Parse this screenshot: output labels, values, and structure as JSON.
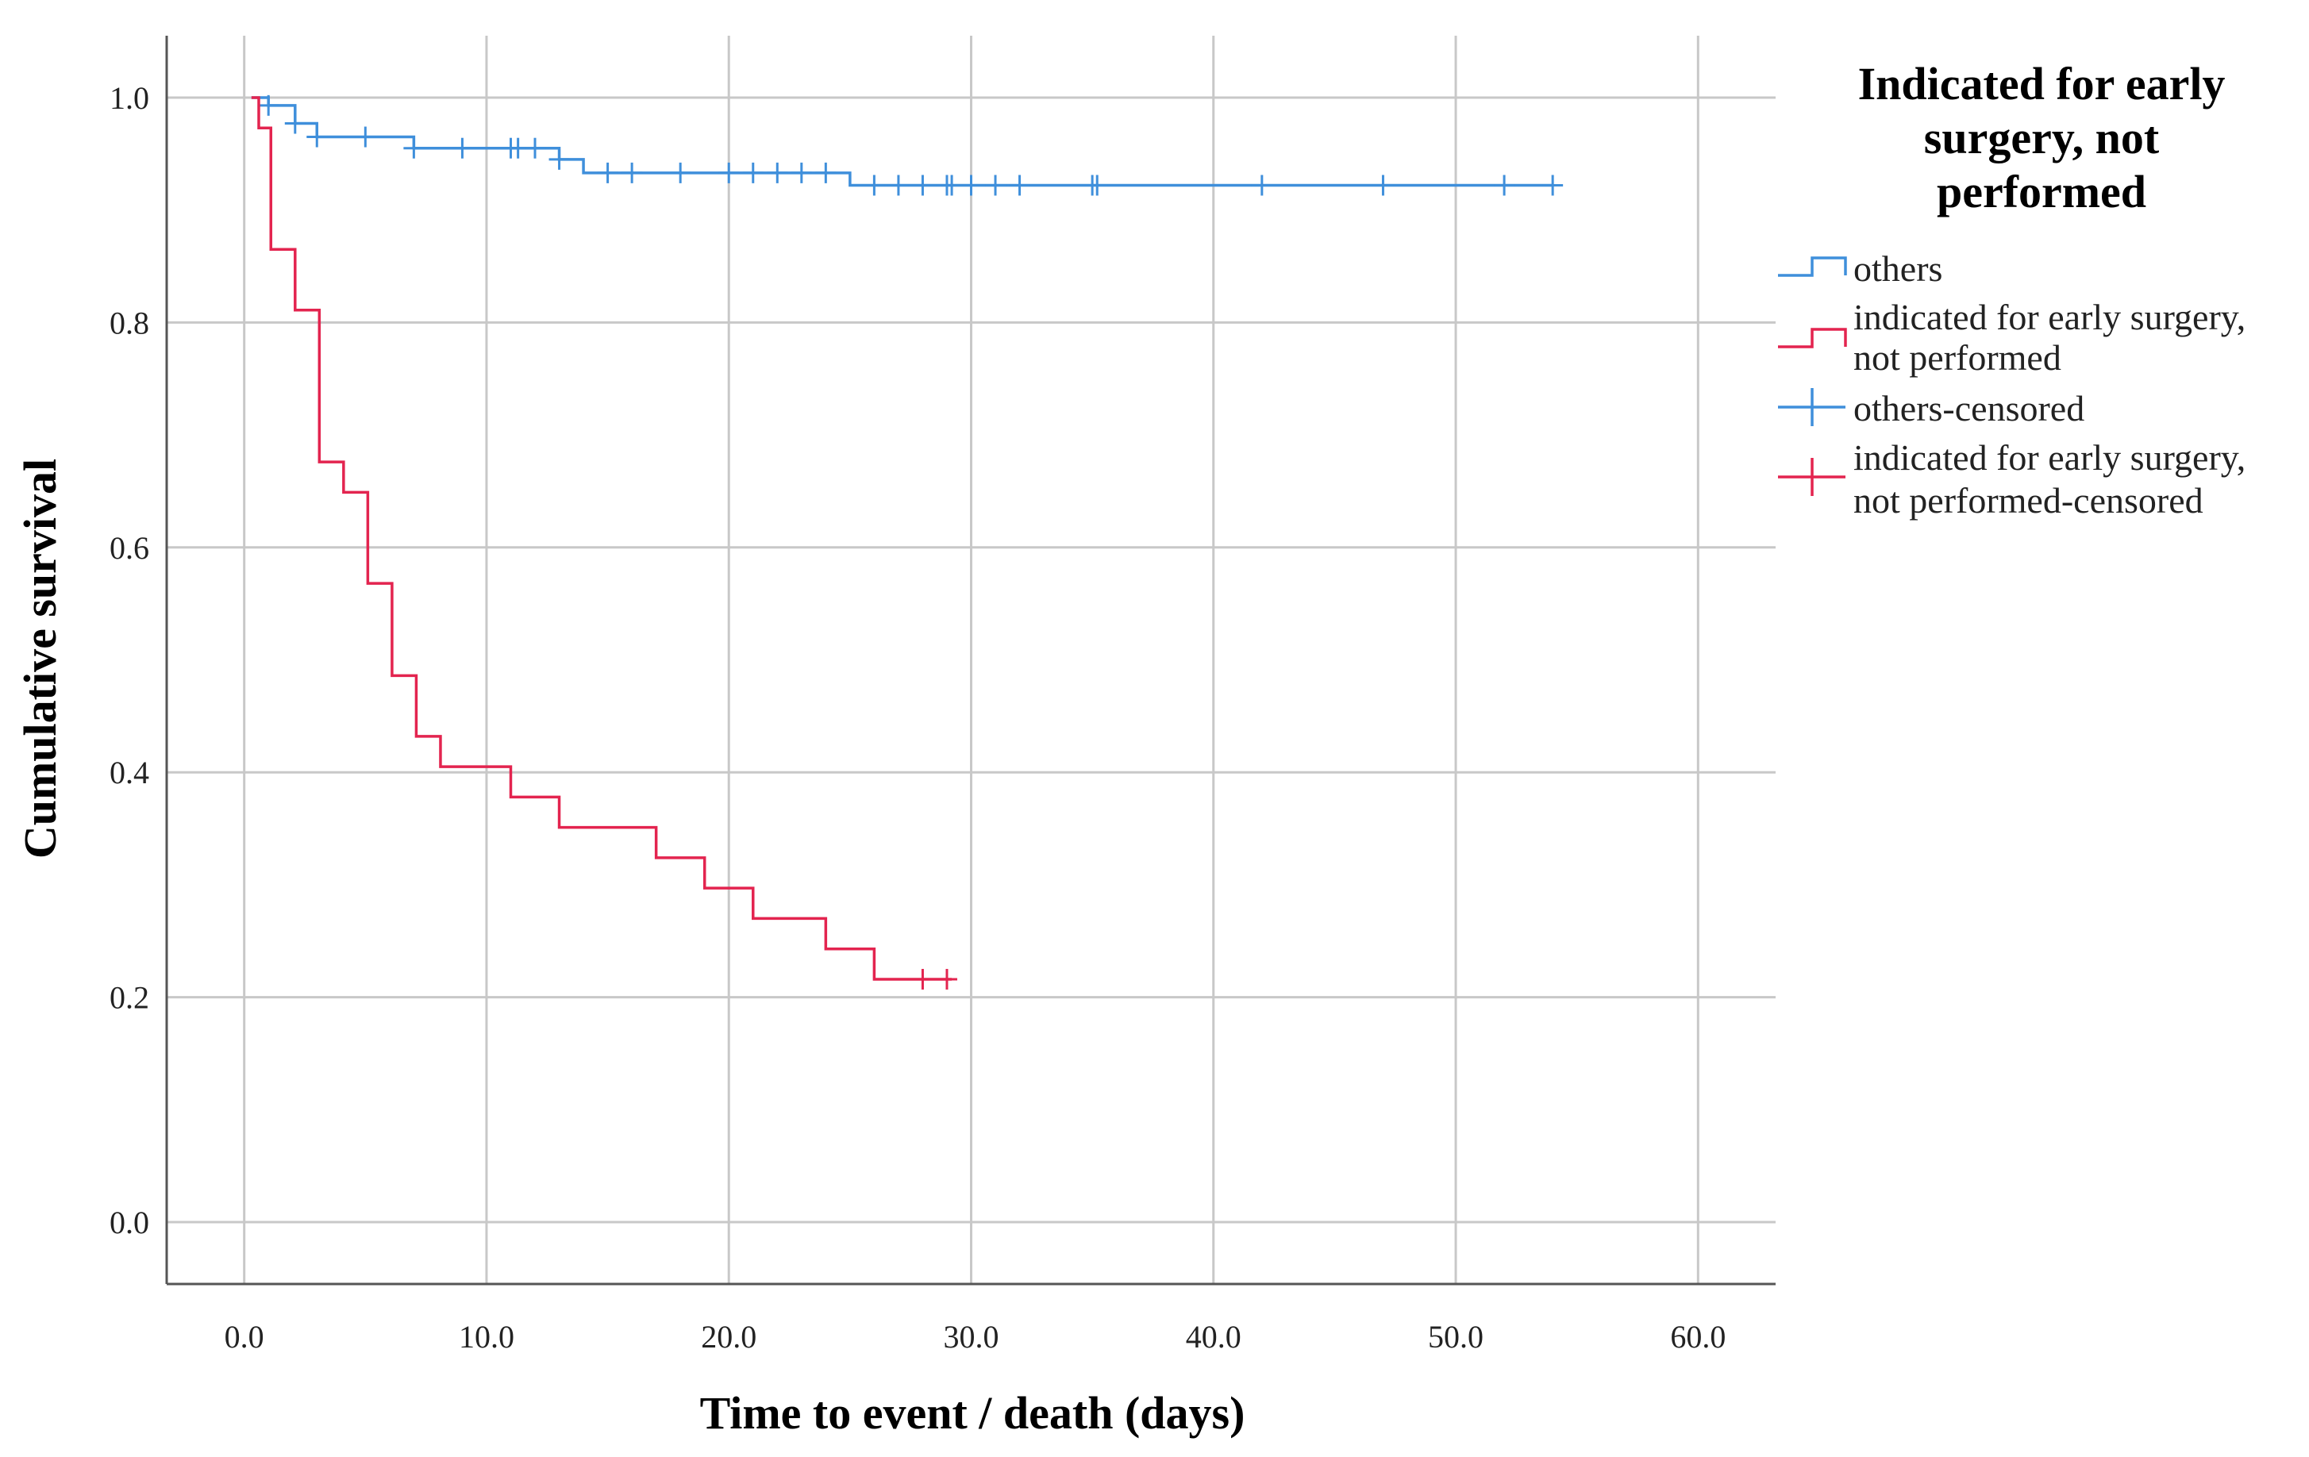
{
  "chart_data": {
    "type": "line",
    "subtype": "kaplan-meier",
    "xlabel": "Time to event / death (days)",
    "ylabel": "Cumulative survival",
    "xlim": [
      -3.2,
      63.2
    ],
    "ylim": [
      -0.055,
      1.055
    ],
    "xticks": [
      0,
      10,
      20,
      30,
      40,
      50,
      60
    ],
    "xtick_labels": [
      "0.0",
      "10.0",
      "20.0",
      "30.0",
      "40.0",
      "50.0",
      "60.0"
    ],
    "yticks": [
      0,
      0.2,
      0.4,
      0.6,
      0.8,
      1.0
    ],
    "ytick_labels": [
      "0.0",
      "0.2",
      "0.4",
      "0.6",
      "0.8",
      "1.0"
    ],
    "grid": true,
    "legend": {
      "title_lines": [
        "Indicated for early",
        "surgery, not",
        "performed"
      ],
      "placement": "right",
      "entries": [
        {
          "lines": [
            "others"
          ],
          "marker": "step",
          "color": "#3f8fdb"
        },
        {
          "lines": [
            "indicated for early surgery,",
            "not performed"
          ],
          "marker": "step",
          "color": "#e3244f"
        },
        {
          "lines": [
            "others-censored"
          ],
          "marker": "plus",
          "color": "#3f8fdb"
        },
        {
          "lines": [
            "indicated for early surgery,",
            "not performed-censored"
          ],
          "marker": "plus",
          "color": "#e3244f"
        }
      ]
    },
    "series": [
      {
        "name": "others",
        "color": "#3f8fdb",
        "steps": [
          [
            0.3,
            1.0
          ],
          [
            1.0,
            0.993
          ],
          [
            2.1,
            0.977
          ],
          [
            3.0,
            0.965
          ],
          [
            7.0,
            0.955
          ],
          [
            13.0,
            0.945
          ],
          [
            14.0,
            0.933
          ],
          [
            25.0,
            0.922
          ],
          [
            54.0,
            0.922
          ]
        ],
        "censored_x": [
          1.0,
          2.1,
          3.0,
          5.0,
          7.0,
          9.0,
          11.0,
          11.3,
          12.0,
          13.0,
          15.0,
          16.0,
          18.0,
          20.0,
          21.0,
          22.0,
          23.0,
          24.0,
          26.0,
          27.0,
          28.0,
          29.0,
          29.2,
          30.0,
          31.0,
          32.0,
          35.0,
          35.2,
          42.0,
          47.0,
          52.0,
          54.0
        ]
      },
      {
        "name": "indicated for early surgery, not performed",
        "color": "#e3244f",
        "steps": [
          [
            0.3,
            1.0
          ],
          [
            0.6,
            0.973
          ],
          [
            1.1,
            0.865
          ],
          [
            2.1,
            0.811
          ],
          [
            3.1,
            0.676
          ],
          [
            4.1,
            0.649
          ],
          [
            5.1,
            0.568
          ],
          [
            6.1,
            0.486
          ],
          [
            7.1,
            0.432
          ],
          [
            8.1,
            0.405
          ],
          [
            11.0,
            0.378
          ],
          [
            13.0,
            0.351
          ],
          [
            17.0,
            0.324
          ],
          [
            19.0,
            0.297
          ],
          [
            21.0,
            0.27
          ],
          [
            24.0,
            0.243
          ],
          [
            26.0,
            0.216
          ],
          [
            29.2,
            0.216
          ]
        ],
        "censored_x": [
          28.0,
          29.0
        ]
      }
    ]
  }
}
